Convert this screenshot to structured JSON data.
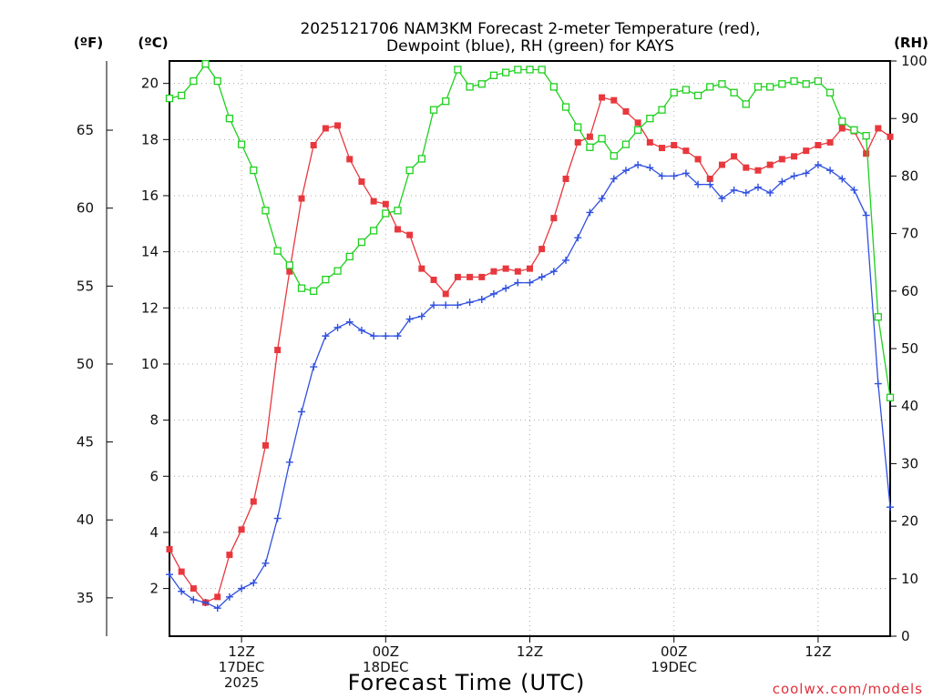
{
  "chart_data": {
    "type": "line",
    "title_line1": "2025121706 NAM3KM Forecast 2-meter Temperature (red),",
    "title_line2": "Dewpoint (blue), RH (green) for KAYS",
    "xlabel": "Forecast Time (UTC)",
    "credit": "coolwx.com/models",
    "units": {
      "fahrenheit": "(ºF)",
      "celsius": "(ºC)",
      "rh": "(RH)"
    },
    "x_hours_range": [
      6,
      66
    ],
    "x_ticks": [
      {
        "hour": 12,
        "lines": [
          "12Z",
          "17DEC",
          "2025"
        ]
      },
      {
        "hour": 24,
        "lines": [
          "00Z",
          "18DEC"
        ]
      },
      {
        "hour": 36,
        "lines": [
          "12Z"
        ]
      },
      {
        "hour": 48,
        "lines": [
          "00Z",
          "19DEC"
        ]
      },
      {
        "hour": 60,
        "lines": [
          "12Z"
        ]
      }
    ],
    "celsius_axis": {
      "range": [
        0.3,
        20.8
      ],
      "ticks": [
        2,
        4,
        6,
        8,
        10,
        12,
        14,
        16,
        18,
        20
      ]
    },
    "fahrenheit_axis": {
      "ticks": [
        35,
        40,
        45,
        50,
        55,
        60,
        65
      ]
    },
    "rh_axis": {
      "range": [
        0,
        100
      ],
      "ticks": [
        0,
        10,
        20,
        30,
        40,
        50,
        60,
        70,
        80,
        90,
        100
      ]
    },
    "series": [
      {
        "name": "Temperature",
        "color": "#e8383d",
        "marker": "filled-square",
        "axis": "celsius",
        "values": [
          3.4,
          2.6,
          2.0,
          1.5,
          1.7,
          3.2,
          4.1,
          5.1,
          7.1,
          10.5,
          13.3,
          15.9,
          17.8,
          18.4,
          18.5,
          17.3,
          16.5,
          15.8,
          15.7,
          14.8,
          14.6,
          13.4,
          13.0,
          12.5,
          13.1,
          13.1,
          13.1,
          13.3,
          13.4,
          13.3,
          13.4,
          14.1,
          15.2,
          16.6,
          17.9,
          18.1,
          19.5,
          19.4,
          19.0,
          18.6,
          17.9,
          17.7,
          17.8,
          17.6,
          17.3,
          16.6,
          17.1,
          17.4,
          17.0,
          16.9,
          17.1,
          17.3,
          17.4,
          17.6,
          17.8,
          17.9,
          18.4,
          18.3,
          17.5,
          18.4,
          18.1
        ]
      },
      {
        "name": "Dewpoint",
        "color": "#2f4fe0",
        "marker": "plus",
        "axis": "celsius",
        "values": [
          2.5,
          1.9,
          1.6,
          1.5,
          1.3,
          1.7,
          2.0,
          2.2,
          2.9,
          4.5,
          6.5,
          8.3,
          9.9,
          11.0,
          11.3,
          11.5,
          11.2,
          11.0,
          11.0,
          11.0,
          11.6,
          11.7,
          12.1,
          12.1,
          12.1,
          12.2,
          12.3,
          12.5,
          12.7,
          12.9,
          12.9,
          13.1,
          13.3,
          13.7,
          14.5,
          15.4,
          15.9,
          16.6,
          16.9,
          17.1,
          17.0,
          16.7,
          16.7,
          16.8,
          16.4,
          16.4,
          15.9,
          16.2,
          16.1,
          16.3,
          16.1,
          16.5,
          16.7,
          16.8,
          17.1,
          16.9,
          16.6,
          16.2,
          15.3,
          9.3,
          4.9
        ]
      },
      {
        "name": "RH",
        "color": "#1ed01e",
        "marker": "open-square",
        "axis": "rh",
        "values": [
          93.5,
          94.0,
          96.5,
          99.5,
          96.5,
          90.0,
          85.5,
          81.0,
          74.0,
          67.0,
          64.5,
          60.5,
          60.0,
          62.0,
          63.5,
          66.0,
          68.5,
          70.5,
          73.5,
          74.0,
          81.0,
          83.0,
          91.5,
          93.0,
          98.5,
          95.5,
          96.0,
          97.5,
          98.0,
          98.5,
          98.5,
          98.5,
          95.5,
          92.0,
          88.5,
          85.0,
          86.5,
          83.5,
          85.5,
          88.0,
          90.0,
          91.5,
          94.5,
          95.0,
          94.0,
          95.5,
          96.0,
          94.5,
          92.5,
          95.5,
          95.5,
          96.0,
          96.5,
          96.0,
          96.5,
          94.5,
          89.5,
          88.0,
          87.0,
          55.5,
          41.5
        ]
      }
    ]
  }
}
